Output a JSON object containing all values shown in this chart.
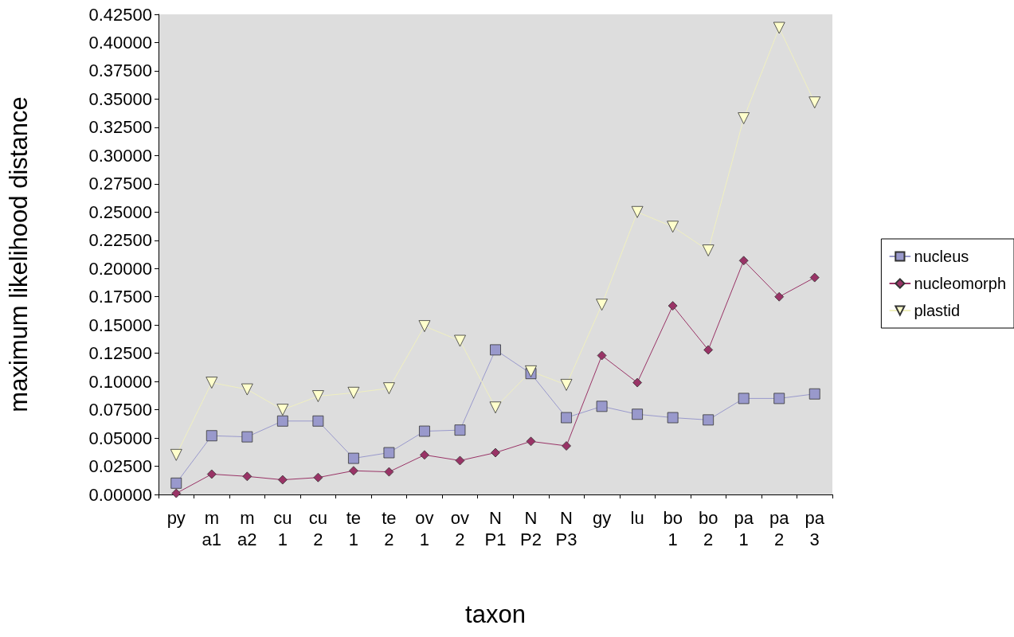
{
  "chart_data": {
    "type": "line",
    "xlabel": "taxon",
    "ylabel": "maximum likelihood distance",
    "categories": [
      "py",
      "ma1",
      "ma2",
      "cu1",
      "cu2",
      "te1",
      "te2",
      "ov1",
      "ov2",
      "NP1",
      "NP2",
      "NP3",
      "gy",
      "lu",
      "bo1",
      "bo2",
      "pa1",
      "pa2",
      "pa3"
    ],
    "series": [
      {
        "name": "nucleus",
        "color": "#9999cc",
        "marker": "square",
        "values": [
          0.01,
          0.052,
          0.051,
          0.065,
          0.065,
          0.032,
          0.037,
          0.056,
          0.057,
          0.128,
          0.107,
          0.068,
          0.078,
          0.071,
          0.068,
          0.066,
          0.085,
          0.085,
          0.089
        ]
      },
      {
        "name": "nucleomorph",
        "color": "#993366",
        "marker": "diamond",
        "values": [
          0.001,
          0.018,
          0.016,
          0.013,
          0.015,
          0.021,
          0.02,
          0.035,
          0.03,
          0.037,
          0.047,
          0.043,
          0.123,
          0.099,
          0.167,
          0.128,
          0.207,
          0.175,
          0.192
        ]
      },
      {
        "name": "plastid",
        "color": "#ffffcc",
        "marker": "triangle",
        "values": [
          0.035,
          0.099,
          0.093,
          0.075,
          0.087,
          0.09,
          0.094,
          0.149,
          0.136,
          0.077,
          0.109,
          0.097,
          0.168,
          0.25,
          0.237,
          0.216,
          0.333,
          0.413,
          0.347
        ]
      }
    ],
    "ylim": [
      0,
      0.425
    ],
    "yticks": [
      {
        "value": 0,
        "label": "0.00000"
      },
      {
        "value": 0.025,
        "label": "0.02500"
      },
      {
        "value": 0.05,
        "label": "0.05000"
      },
      {
        "value": 0.075,
        "label": "0.07500"
      },
      {
        "value": 0.1,
        "label": "0.10000"
      },
      {
        "value": 0.125,
        "label": "0.12500"
      },
      {
        "value": 0.15,
        "label": "0.15000"
      },
      {
        "value": 0.175,
        "label": "0.17500"
      },
      {
        "value": 0.2,
        "label": "0.20000"
      },
      {
        "value": 0.225,
        "label": "0.22500"
      },
      {
        "value": 0.25,
        "label": "0.25000"
      },
      {
        "value": 0.275,
        "label": "0.27500"
      },
      {
        "value": 0.3,
        "label": "0.30000"
      },
      {
        "value": 0.325,
        "label": "0.32500"
      },
      {
        "value": 0.35,
        "label": "0.35000"
      },
      {
        "value": 0.375,
        "label": "0.37500"
      },
      {
        "value": 0.4,
        "label": "0.40000"
      },
      {
        "value": 0.425,
        "label": "0.42500"
      }
    ],
    "grid": false,
    "legend": "right",
    "line_style": "solid"
  }
}
